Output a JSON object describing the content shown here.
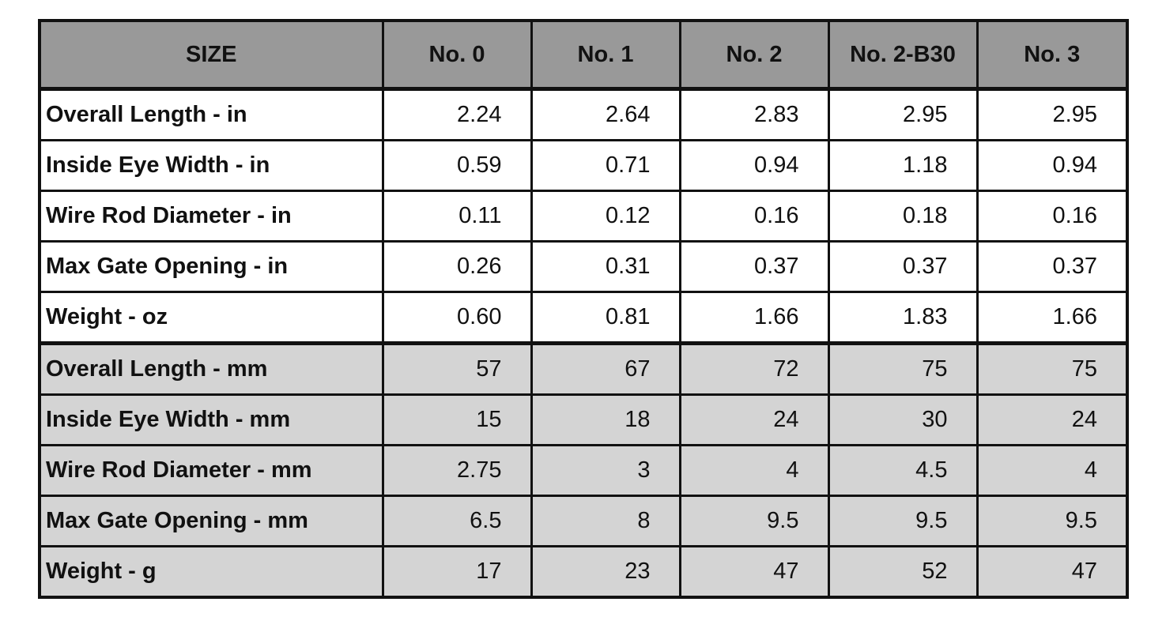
{
  "table": {
    "header": [
      "SIZE",
      "No. 0",
      "No. 1",
      "No. 2",
      "No. 2-B30",
      "No. 3"
    ],
    "rows": [
      [
        "Overall Length - in",
        "2.24",
        "2.64",
        "2.83",
        "2.95",
        "2.95"
      ],
      [
        "Inside Eye Width - in",
        "0.59",
        "0.71",
        "0.94",
        "1.18",
        "0.94"
      ],
      [
        "Wire Rod Diameter - in",
        "0.11",
        "0.12",
        "0.16",
        "0.18",
        "0.16"
      ],
      [
        "Max Gate Opening - in",
        "0.26",
        "0.31",
        "0.37",
        "0.37",
        "0.37"
      ],
      [
        "Weight - oz",
        "0.60",
        "0.81",
        "1.66",
        "1.83",
        "1.66"
      ],
      [
        "Overall Length - mm",
        "57",
        "67",
        "72",
        "75",
        "75"
      ],
      [
        "Inside Eye Width - mm",
        "15",
        "18",
        "24",
        "30",
        "24"
      ],
      [
        "Wire Rod Diameter - mm",
        "2.75",
        "3",
        "4",
        "4.5",
        "4"
      ],
      [
        "Max Gate Opening - mm",
        "6.5",
        "8",
        "9.5",
        "9.5",
        "9.5"
      ],
      [
        "Weight - g",
        "17",
        "23",
        "47",
        "52",
        "47"
      ]
    ]
  }
}
